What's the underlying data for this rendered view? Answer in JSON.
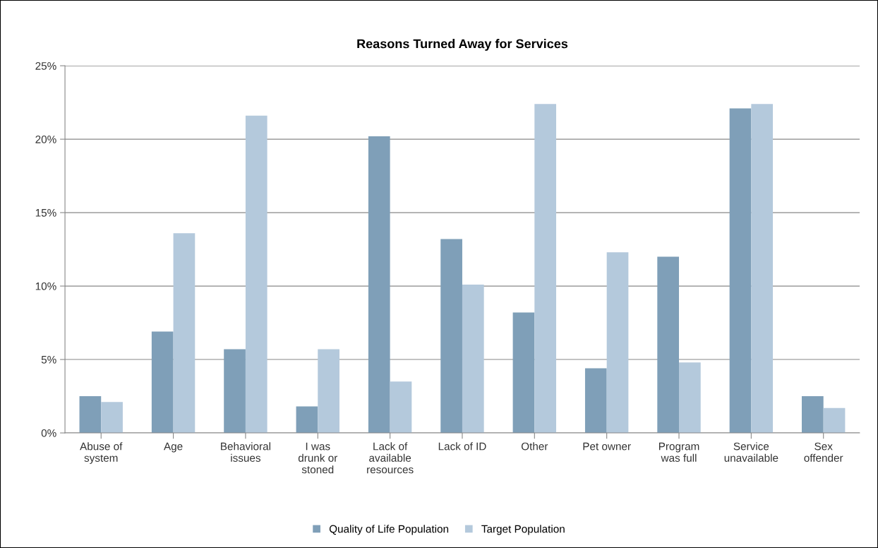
{
  "chart_data": {
    "type": "bar",
    "title": "Reasons Turned Away for Services",
    "categories": [
      "Abuse of\nsystem",
      "Age",
      "Behavioral\nissues",
      "I was\ndrunk or\nstoned",
      "Lack of\navailable\nresources",
      "Lack of ID",
      "Other",
      "Pet owner",
      "Program\nwas full",
      "Service\nunavailable",
      "Sex\noffender"
    ],
    "series": [
      {
        "name": "Quality of Life Population",
        "color": "#7f9fb8",
        "values": [
          2.5,
          6.9,
          5.7,
          1.8,
          20.2,
          13.2,
          8.2,
          4.4,
          12.0,
          22.1,
          2.5
        ]
      },
      {
        "name": "Target Population",
        "color": "#b4c9dc",
        "values": [
          2.1,
          13.6,
          21.6,
          5.7,
          3.5,
          10.1,
          22.4,
          12.3,
          4.8,
          22.4,
          1.7
        ]
      }
    ],
    "ylim": [
      0,
      25
    ],
    "yticks": [
      {
        "value": 0,
        "label": "0%"
      },
      {
        "value": 5,
        "label": "5%"
      },
      {
        "value": 10,
        "label": "10%"
      },
      {
        "value": 15,
        "label": "15%"
      },
      {
        "value": 20,
        "label": "20%"
      },
      {
        "value": 25,
        "label": "25%"
      }
    ],
    "grid": "y",
    "legend": "bottom"
  }
}
